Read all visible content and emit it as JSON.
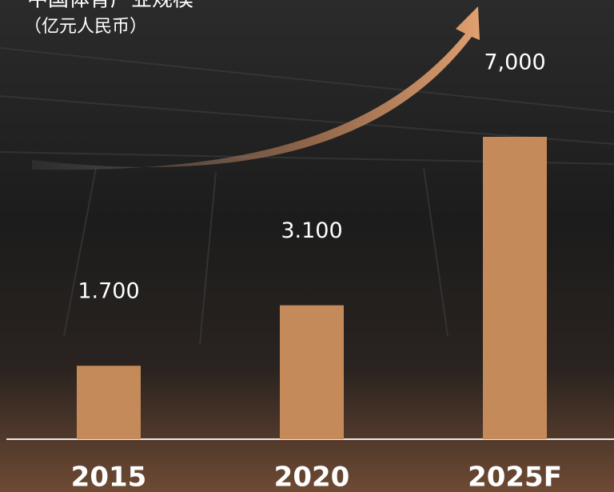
{
  "chart_data": {
    "type": "bar",
    "title": "中国体育产业规模",
    "subtitle": "（亿元人民币）",
    "categories": [
      "2015",
      "2020",
      "2025F"
    ],
    "values": [
      1700,
      3100,
      7000
    ],
    "value_labels": [
      "1.700",
      "3.100",
      "7,000"
    ],
    "color": "#c48a5a"
  }
}
